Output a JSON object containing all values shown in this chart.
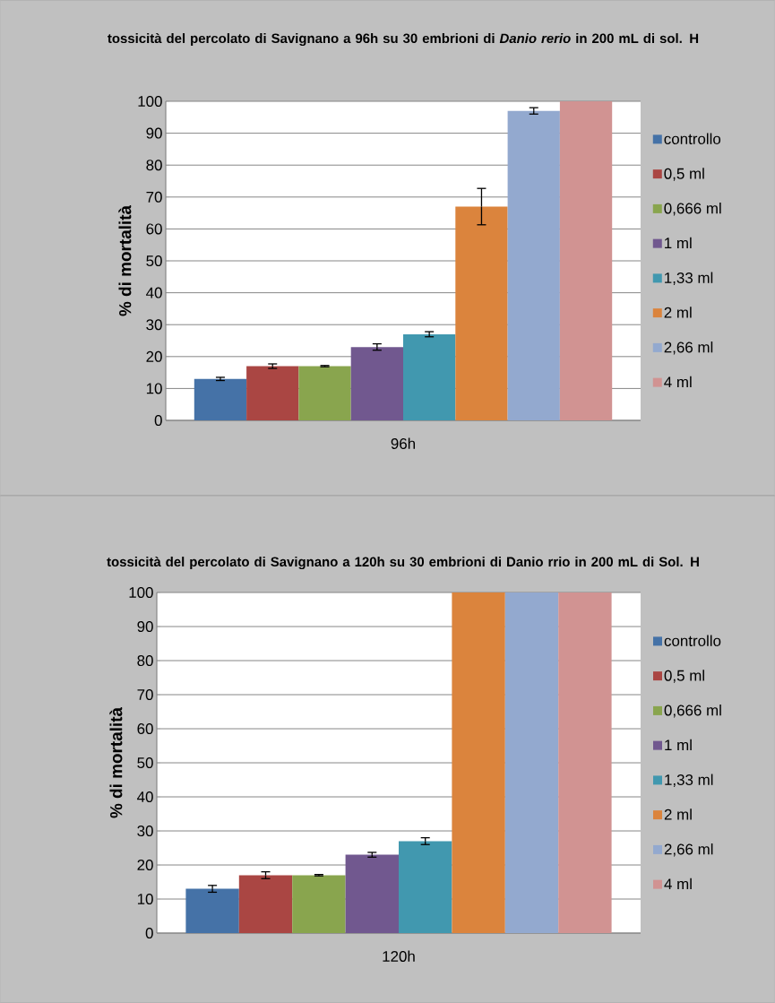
{
  "chart_data": [
    {
      "type": "bar",
      "title": "tossicità del percolato di Savignano  a 96h su 30 embrioni di *Danio rerio* in 200 mL di sol. H",
      "ylabel": "% di mortalità",
      "categories": [
        "96h"
      ],
      "ylim": [
        0,
        100
      ],
      "yticks": [
        0,
        10,
        20,
        30,
        40,
        50,
        60,
        70,
        80,
        90,
        100
      ],
      "grid": "y",
      "legend": "right",
      "series": [
        {
          "name": "controllo",
          "color": "#4572a7",
          "values": [
            13
          ],
          "errors": [
            0.5
          ]
        },
        {
          "name": "0,5 ml",
          "color": "#aa4643",
          "values": [
            17
          ],
          "errors": [
            0.7
          ]
        },
        {
          "name": "0,666 ml",
          "color": "#89a54e",
          "values": [
            17
          ],
          "errors": [
            0.2
          ]
        },
        {
          "name": "1 ml",
          "color": "#71588f",
          "values": [
            23
          ],
          "errors": [
            1
          ]
        },
        {
          "name": "1,33 ml",
          "color": "#4198af",
          "values": [
            27
          ],
          "errors": [
            0.8
          ]
        },
        {
          "name": "2 ml",
          "color": "#db843d",
          "values": [
            67
          ],
          "errors": [
            5.7
          ]
        },
        {
          "name": "2,66 ml",
          "color": "#93a9cf",
          "values": [
            97
          ],
          "errors": [
            1
          ]
        },
        {
          "name": "4 ml",
          "color": "#d19392",
          "values": [
            100
          ],
          "errors": [
            null
          ]
        }
      ]
    },
    {
      "type": "bar",
      "title": "tossicità del percolato di Savignano a 120h su 30 embrioni di Danio rrio in 200 mL di Sol. H",
      "ylabel": "% di mortalità",
      "categories": [
        "120h"
      ],
      "ylim": [
        0,
        100
      ],
      "yticks": [
        0,
        10,
        20,
        30,
        40,
        50,
        60,
        70,
        80,
        90,
        100
      ],
      "grid": "y",
      "legend": "right",
      "series": [
        {
          "name": "controllo",
          "color": "#4572a7",
          "values": [
            13
          ],
          "errors": [
            1
          ]
        },
        {
          "name": "0,5 ml",
          "color": "#aa4643",
          "values": [
            17
          ],
          "errors": [
            1
          ]
        },
        {
          "name": "0,666 ml",
          "color": "#89a54e",
          "values": [
            17
          ],
          "errors": [
            0.2
          ]
        },
        {
          "name": "1 ml",
          "color": "#71588f",
          "values": [
            23
          ],
          "errors": [
            0.7
          ]
        },
        {
          "name": "1,33 ml",
          "color": "#4198af",
          "values": [
            27
          ],
          "errors": [
            1
          ]
        },
        {
          "name": "2 ml",
          "color": "#db843d",
          "values": [
            100
          ],
          "errors": [
            null
          ]
        },
        {
          "name": "2,66 ml",
          "color": "#93a9cf",
          "values": [
            100
          ],
          "errors": [
            null
          ]
        },
        {
          "name": "4 ml",
          "color": "#d19392",
          "values": [
            100
          ],
          "errors": [
            null
          ]
        }
      ]
    }
  ]
}
